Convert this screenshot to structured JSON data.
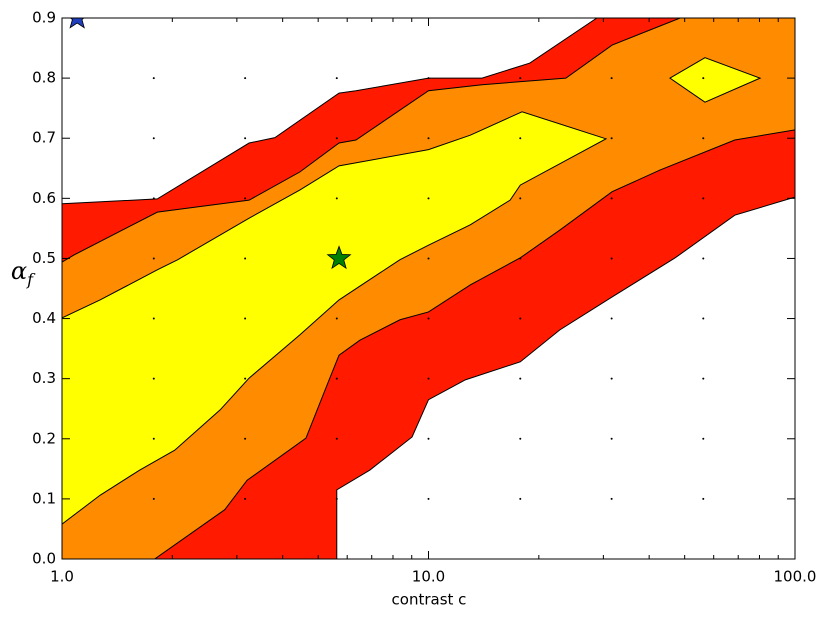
{
  "chart_data": {
    "type": "contour",
    "xlabel": "contrast c",
    "ylabel": {
      "symbol": "α",
      "subscript": "f"
    },
    "xscale": "log",
    "xlim": [
      1,
      100
    ],
    "ylim": [
      0,
      0.9
    ],
    "xticks": [
      {
        "value": 1,
        "label": "1.0"
      },
      {
        "value": 10,
        "label": "10.0"
      },
      {
        "value": 100,
        "label": "100.0"
      }
    ],
    "yticks": [
      {
        "value": 0,
        "label": "0.0"
      },
      0.1,
      0.2,
      0.3,
      0.4,
      0.5,
      0.6,
      0.7,
      0.8,
      0.9
    ],
    "minor_ticks": true,
    "contours": [
      {
        "color": "#ff1a00",
        "x": [
          1,
          1.82,
          3.24,
          3.81,
          5.7,
          6.34,
          10,
          14,
          18.9,
          28.8,
          100,
          100,
          68.5,
          47.1,
          31.7,
          22.8,
          17.8,
          12.6,
          10,
          9.02,
          6.92,
          5.62,
          5.62,
          1
        ],
        "y": [
          0.591,
          0.599,
          0.692,
          0.701,
          0.775,
          0.779,
          0.8,
          0.8,
          0.825,
          0.9,
          0.9,
          0.602,
          0.572,
          0.501,
          0.436,
          0.381,
          0.328,
          0.298,
          0.265,
          0.203,
          0.148,
          0.115,
          0,
          0
        ]
      },
      {
        "color": "#ff8c00",
        "x": [
          1,
          1.08,
          1.82,
          3.24,
          4.46,
          5.7,
          6.34,
          10,
          14,
          23.7,
          31.7,
          48.6,
          100,
          100,
          68.5,
          42.8,
          31.7,
          22.8,
          17.8,
          13,
          10,
          8.36,
          6.5,
          5.7,
          5.38,
          4.63,
          3.2,
          2.78,
          1.79,
          1
        ],
        "y": [
          0.494,
          0.506,
          0.577,
          0.597,
          0.644,
          0.692,
          0.697,
          0.779,
          0.789,
          0.8,
          0.855,
          0.9,
          0.9,
          0.714,
          0.697,
          0.647,
          0.611,
          0.547,
          0.501,
          0.456,
          0.411,
          0.398,
          0.364,
          0.339,
          0.301,
          0.201,
          0.131,
          0.082,
          0,
          0
        ]
      },
      {
        "color": "#ffff00",
        "x": [
          1,
          1.27,
          1.82,
          2.07,
          3.24,
          4.46,
          5.7,
          10,
          13,
          18,
          30.5,
          17.8,
          16.7,
          13,
          10,
          8.36,
          5.7,
          4.46,
          3.24,
          2.7,
          2.03,
          1.63,
          1.27,
          1
        ],
        "y": [
          0.401,
          0.431,
          0.481,
          0.498,
          0.567,
          0.614,
          0.654,
          0.681,
          0.705,
          0.744,
          0.699,
          0.622,
          0.597,
          0.556,
          0.522,
          0.498,
          0.431,
          0.373,
          0.301,
          0.248,
          0.181,
          0.148,
          0.106,
          0.058
        ]
      },
      {
        "color": "#ffff00",
        "x": [
          45.6,
          56.8,
          80.3,
          56.8
        ],
        "y": [
          0.8,
          0.834,
          0.8,
          0.76
        ]
      }
    ],
    "samples": {
      "x": [
        1.78,
        3.16,
        5.62,
        10,
        17.8,
        31.6,
        56.2
      ],
      "y": [
        0.1,
        0.2,
        0.3,
        0.4,
        0.5,
        0.6,
        0.7,
        0.8
      ]
    },
    "markers": [
      {
        "x": 1.1,
        "y": 0.9,
        "color": "#1f3fbf"
      },
      {
        "x": 5.7,
        "y": 0.5,
        "color": "#008000"
      }
    ]
  }
}
